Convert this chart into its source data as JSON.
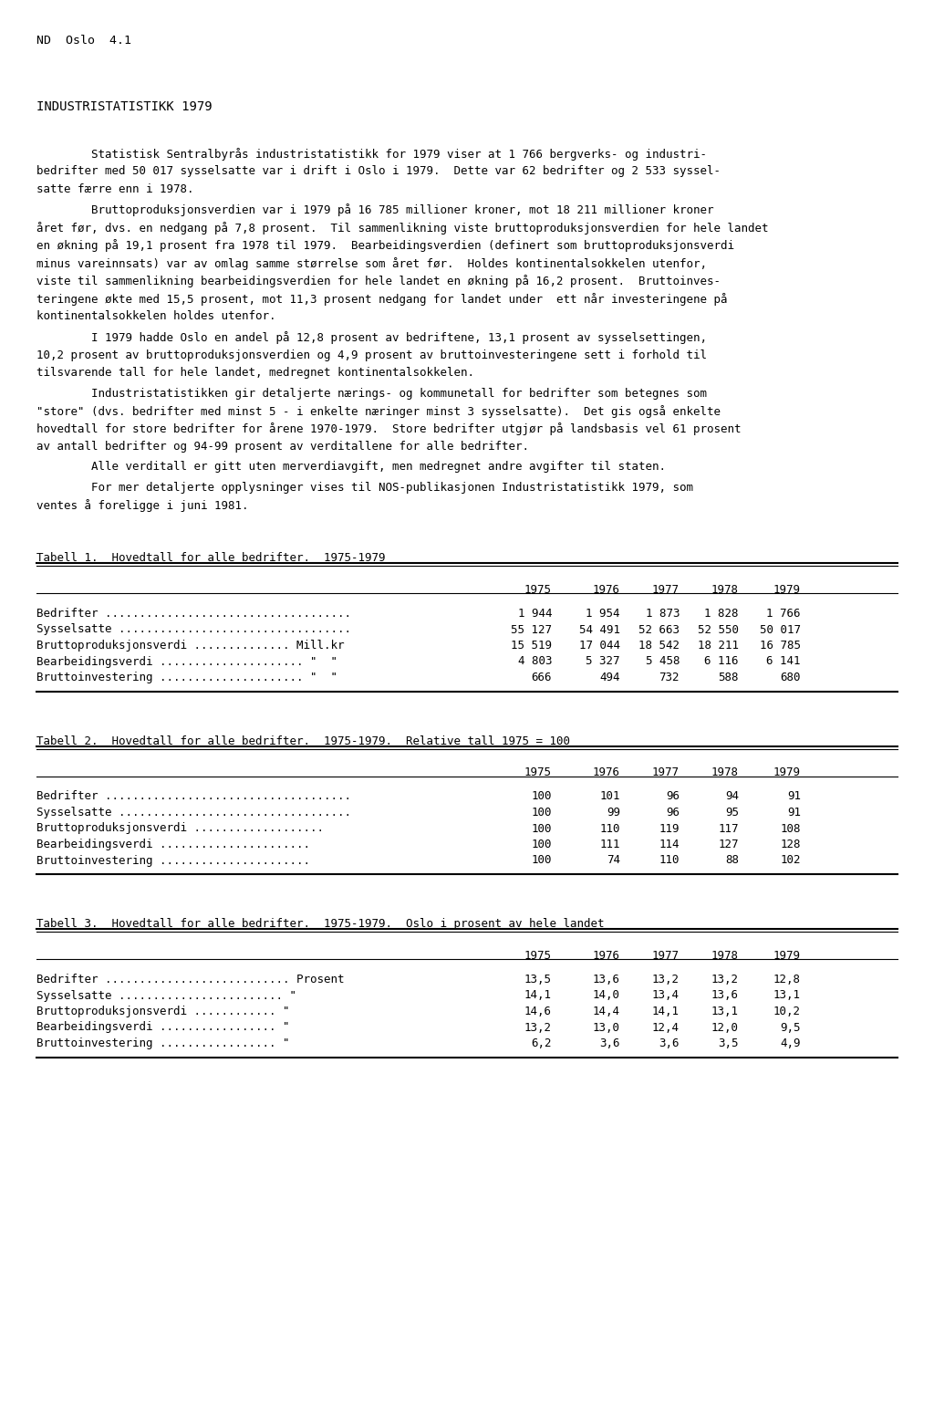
{
  "header": "ND  Oslo  4.1",
  "title": "INDUSTRISTATISTIKK 1979",
  "para1": [
    "        Statistisk Sentralbyrås industristatistikk for 1979 viser at 1 766 bergverks- og industri-",
    "bedrifter med 50 017 sysselsatte var i drift i Oslo i 1979.  Dette var 62 bedrifter og 2 533 syssel-",
    "satte færre enn i 1978."
  ],
  "para2": [
    "        Bruttoproduksjonsverdien var i 1979 på 16 785 millioner kroner, mot 18 211 millioner kroner",
    "året før, dvs. en nedgang på 7,8 prosent.  Til sammenlikning viste bruttoproduksjonsverdien for hele landet",
    "en økning på 19,1 prosent fra 1978 til 1979.  Bearbeidingsverdien (definert som bruttoproduksjonsverdi",
    "minus vareinnsats) var av omlag samme størrelse som året før.  Holdes kontinentalsokkelen utenfor,",
    "viste til sammenlikning bearbeidingsverdien for hele landet en økning på 16,2 prosent.  Bruttoinves-",
    "teringene økte med 15,5 prosent, mot 11,3 prosent nedgang for landet under  ett når investeringene på",
    "kontinentalsokkelen holdes utenfor."
  ],
  "para3": [
    "        I 1979 hadde Oslo en andel på 12,8 prosent av bedriftene, 13,1 prosent av sysselsettingen,",
    "10,2 prosent av bruttoproduksjonsverdien og 4,9 prosent av bruttoinvesteringene sett i forhold til",
    "tilsvarende tall for hele landet, medregnet kontinentalsokkelen."
  ],
  "para4": [
    "        Industristatistikken gir detaljerte nærings- og kommunetall for bedrifter som betegnes som",
    "\"store\" (dvs. bedrifter med minst 5 - i enkelte næringer minst 3 sysselsatte).  Det gis også enkelte",
    "hovedtall for store bedrifter for årene 1970-1979.  Store bedrifter utgjør på landsbasis vel 61 prosent",
    "av antall bedrifter og 94-99 prosent av verditallene for alle bedrifter."
  ],
  "para5": [
    "        Alle verditall er gitt uten merverdiavgift, men medregnet andre avgifter til staten."
  ],
  "para6": [
    "        For mer detaljerte opplysninger vises til NOS-publikasjonen Industristatistikk 1979, som",
    "ventes å foreligge i juni 1981."
  ],
  "table1_title": "Tabell 1.  Hovedtall for alle bedrifter.  1975-1979",
  "table1_rows": [
    [
      "Bedrifter ....................................",
      "1 944",
      "1 954",
      "1 873",
      "1 828",
      "1 766"
    ],
    [
      "Sysselsatte ..................................",
      "55 127",
      "54 491",
      "52 663",
      "52 550",
      "50 017"
    ],
    [
      "Bruttoproduksjonsverdi .............. Mill.kr",
      "15 519",
      "17 044",
      "18 542",
      "18 211",
      "16 785"
    ],
    [
      "Bearbeidingsverdi ..................... \"  \"",
      "4 803",
      "5 327",
      "5 458",
      "6 116",
      "6 141"
    ],
    [
      "Bruttoinvestering ..................... \"  \"",
      "666",
      "494",
      "732",
      "588",
      "680"
    ]
  ],
  "table2_title": "Tabell 2.  Hovedtall for alle bedrifter.  1975-1979.  Relative tall 1975 = 100",
  "table2_rows": [
    [
      "Bedrifter ....................................",
      "100",
      "101",
      "96",
      "94",
      "91"
    ],
    [
      "Sysselsatte ..................................",
      "100",
      "99",
      "96",
      "95",
      "91"
    ],
    [
      "Bruttoproduksjonsverdi ...................",
      "100",
      "110",
      "119",
      "117",
      "108"
    ],
    [
      "Bearbeidingsverdi ......................",
      "100",
      "111",
      "114",
      "127",
      "128"
    ],
    [
      "Bruttoinvestering ......................",
      "100",
      "74",
      "110",
      "88",
      "102"
    ]
  ],
  "table3_title": "Tabell 3.  Hovedtall for alle bedrifter.  1975-1979.  Oslo i prosent av hele landet",
  "table3_rows": [
    [
      "Bedrifter ........................... Prosent",
      "13,5",
      "13,6",
      "13,2",
      "13,2",
      "12,8"
    ],
    [
      "Sysselsatte ........................ \"",
      "14,1",
      "14,0",
      "13,4",
      "13,6",
      "13,1"
    ],
    [
      "Bruttoproduksjonsverdi ............ \"",
      "14,6",
      "14,4",
      "14,1",
      "13,1",
      "10,2"
    ],
    [
      "Bearbeidingsverdi ................. \"",
      "13,2",
      "13,0",
      "12,4",
      "12,0",
      "9,5"
    ],
    [
      "Bruttoinvestering ................. \"",
      "6,2",
      "3,6",
      "3,6",
      "3,5",
      "4,9"
    ]
  ],
  "col_years": [
    "1975",
    "1976",
    "1977",
    "1978",
    "1979"
  ],
  "bg_color": "#ffffff",
  "text_color": "#000000"
}
